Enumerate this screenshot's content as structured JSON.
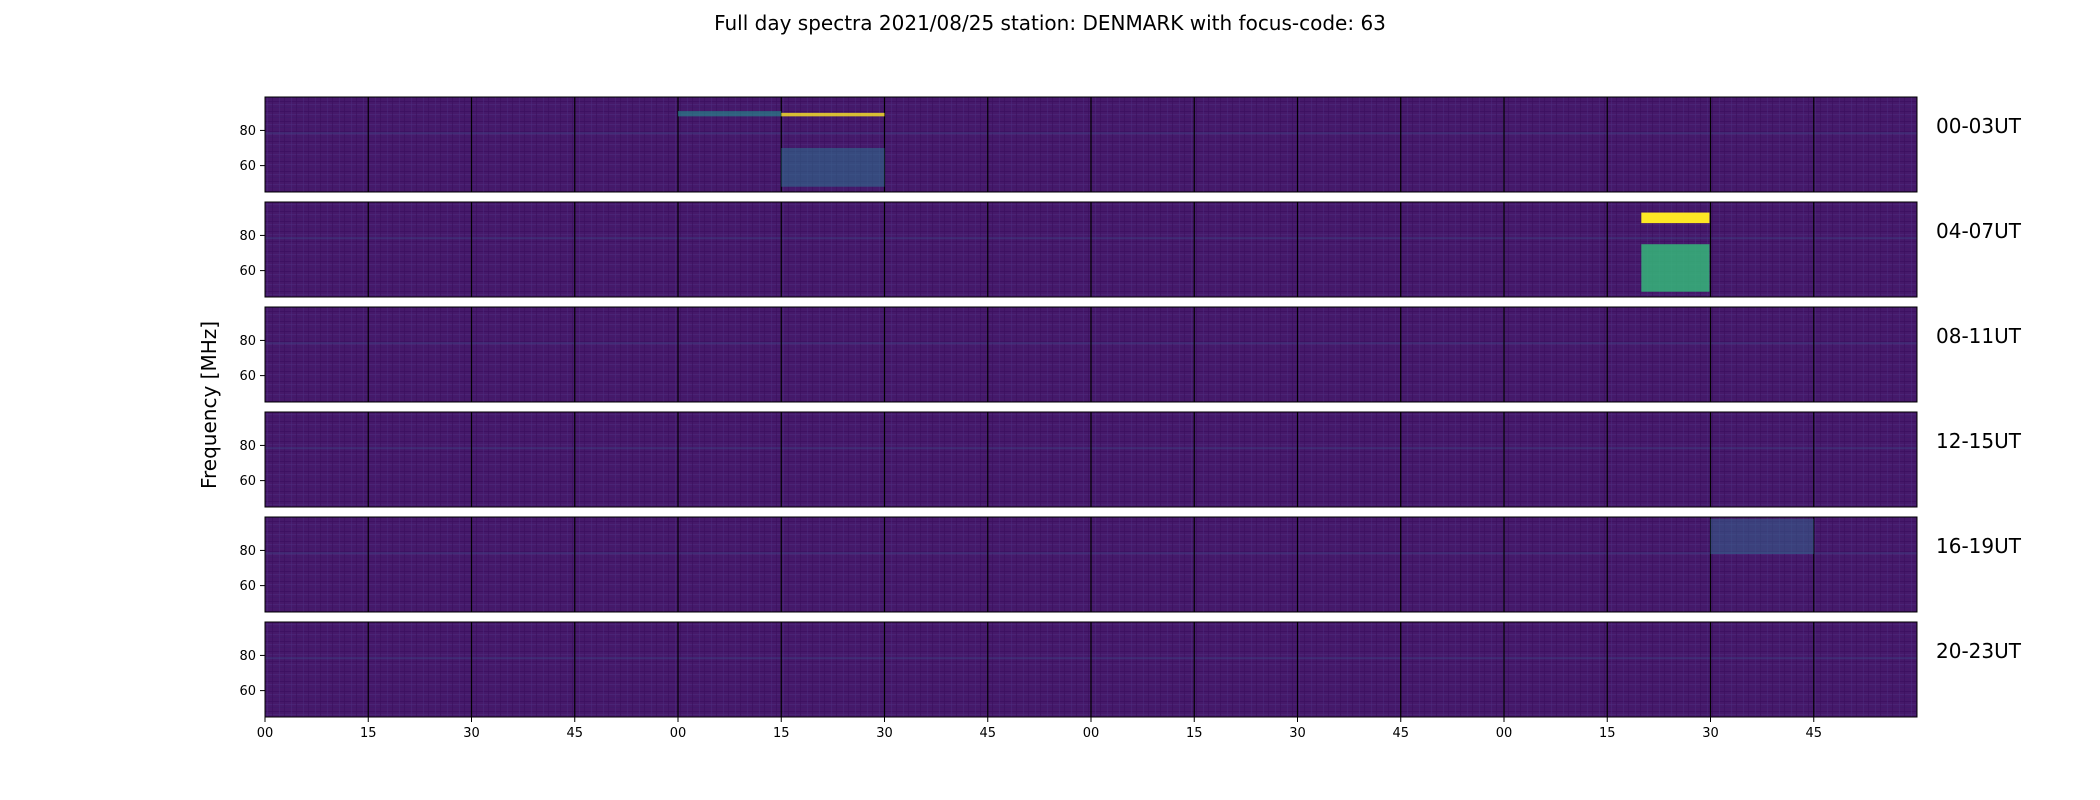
{
  "chart_data": {
    "type": "heatmap",
    "title": "Full day spectra 2021/08/25 station: DENMARK with focus-code: 63",
    "ylabel": "Frequency [MHz]",
    "xlabel": "",
    "ylim": [
      45,
      99
    ],
    "yticks": [
      60,
      80
    ],
    "xtick_labels": [
      "00",
      "15",
      "30",
      "45",
      "00",
      "15",
      "30",
      "45",
      "00",
      "15",
      "30",
      "45",
      "00",
      "15",
      "30",
      "45"
    ],
    "rows": [
      {
        "label": "00-03UT",
        "panels": 16
      },
      {
        "label": "04-07UT",
        "panels": 16
      },
      {
        "label": "08-11UT",
        "panels": 16
      },
      {
        "label": "12-15UT",
        "panels": 16
      },
      {
        "label": "16-19UT",
        "panels": 16
      },
      {
        "label": "20-23UT",
        "panels": 16
      }
    ],
    "colormap": {
      "name": "viridis",
      "low": "#440154",
      "mid": "#21918c",
      "high": "#fde725"
    },
    "background": "#46196a",
    "panel_border": "#000000",
    "grid": false
  }
}
